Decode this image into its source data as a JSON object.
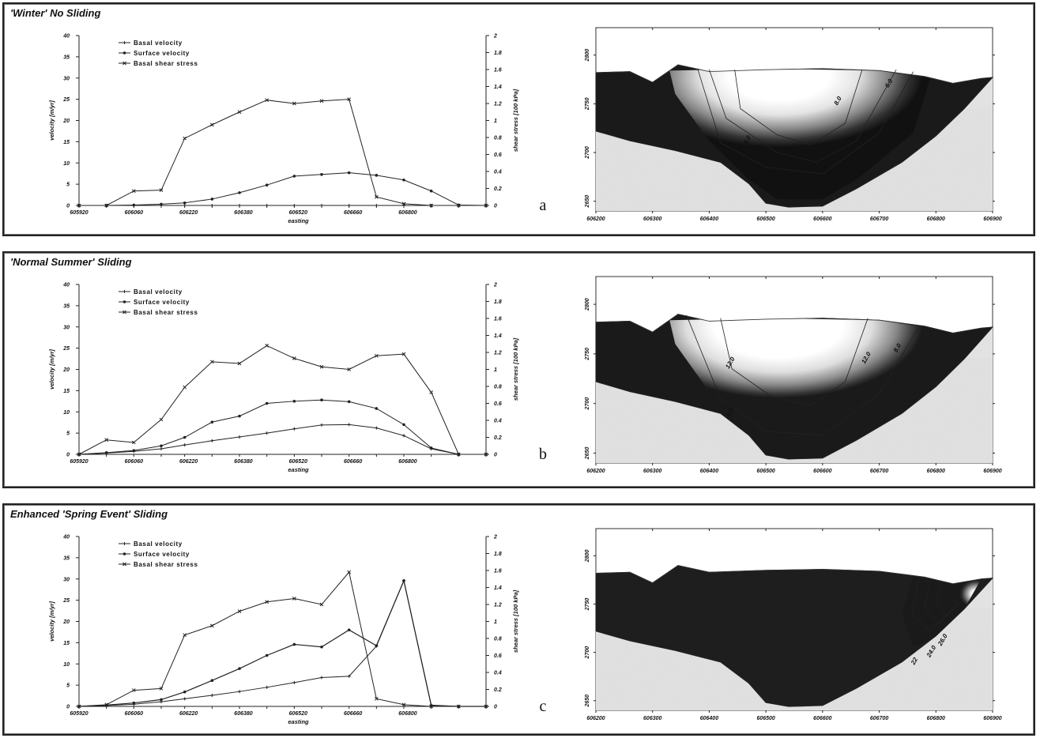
{
  "panels": [
    {
      "title": "'Winter' No Sliding",
      "letter": "a",
      "chart_data": {
        "type": "line",
        "xlabel": "easting",
        "ylabel": "velocity [m/yr]",
        "y2label": "shear stress [100 kPa]",
        "x_ticks": [
          "605920",
          "606060",
          "606220",
          "606380",
          "606520",
          "606660",
          "606800"
        ],
        "ylim": [
          0,
          40
        ],
        "y_ticks": [
          "0",
          "5",
          "10",
          "15",
          "20",
          "25",
          "30",
          "35",
          "40"
        ],
        "y2lim": [
          0,
          2
        ],
        "y2_ticks": [
          "0",
          "0.2",
          "0.4",
          "0.6",
          "0.8",
          "1",
          "1.2",
          "1.4",
          "1.6",
          "1.8",
          "2"
        ],
        "legend": [
          "Basal velocity",
          "Surface velocity",
          "Basal shear stress"
        ],
        "x": [
          605920,
          605990,
          606060,
          606130,
          606190,
          606260,
          606330,
          606400,
          606470,
          606540,
          606610,
          606680,
          606750,
          606820,
          606890,
          606960
        ],
        "series": [
          {
            "name": "Basal velocity",
            "values": [
              0,
              0,
              0,
              0,
              0,
              0,
              0,
              0,
              0,
              0,
              0,
              0,
              0,
              0,
              0,
              0
            ]
          },
          {
            "name": "Surface velocity",
            "values": [
              0,
              0,
              0.1,
              0.3,
              0.6,
              1.5,
              3,
              4.8,
              6.9,
              7.3,
              7.7,
              7.1,
              6,
              3.4,
              0.1,
              0
            ]
          },
          {
            "name": "Basal shear stress",
            "axis": "right",
            "values": [
              0,
              0,
              0.17,
              0.18,
              0.79,
              0.95,
              1.1,
              1.24,
              1.2,
              1.23,
              1.25,
              0.1,
              0.02,
              0,
              0,
              0
            ]
          }
        ]
      },
      "section": {
        "x_ticks": [
          "606200",
          "606300",
          "606400",
          "606500",
          "606600",
          "606700",
          "606800",
          "606900"
        ],
        "y_ticks": [
          "2650",
          "2700",
          "2750",
          "2800"
        ],
        "xlim": [
          606200,
          606900
        ],
        "ylim": [
          2640,
          2820
        ],
        "shading": "winter",
        "contour_labels": [
          "8.0",
          "6.0",
          "6.0",
          "4.0"
        ]
      }
    },
    {
      "title": "'Normal Summer' Sliding",
      "letter": "b",
      "chart_data": {
        "type": "line",
        "xlabel": "easting",
        "ylabel": "velocity [m/yr]",
        "y2label": "shear stress [100 kPa]",
        "x_ticks": [
          "605920",
          "606060",
          "606220",
          "606380",
          "606520",
          "606660",
          "606800"
        ],
        "ylim": [
          0,
          40
        ],
        "y_ticks": [
          "0",
          "5",
          "10",
          "15",
          "20",
          "25",
          "30",
          "35",
          "40"
        ],
        "y2lim": [
          0,
          2
        ],
        "y2_ticks": [
          "0",
          "0.2",
          "0.4",
          "0.6",
          "0.8",
          "1",
          "1.2",
          "1.4",
          "1.6",
          "1.8",
          "2"
        ],
        "legend": [
          "Basal velocity",
          "Surface velocity",
          "Basal shear stress"
        ],
        "x": [
          605920,
          605990,
          606060,
          606130,
          606190,
          606260,
          606330,
          606400,
          606470,
          606540,
          606610,
          606680,
          606750,
          606820,
          606890,
          606960
        ],
        "series": [
          {
            "name": "Basal velocity",
            "values": [
              0,
              0.3,
              0.7,
              1.3,
              2.2,
              3.2,
              4.1,
              5,
              6,
              6.9,
              7,
              6.2,
              4.4,
              1.3,
              0,
              0
            ]
          },
          {
            "name": "Surface velocity",
            "values": [
              0,
              0.4,
              0.9,
              2,
              4,
              7.6,
              9,
              12,
              12.5,
              12.8,
              12.4,
              10.8,
              7,
              1.5,
              0,
              0
            ]
          },
          {
            "name": "Basal shear stress",
            "axis": "right",
            "values": [
              0,
              0.17,
              0.14,
              0.41,
              0.79,
              1.09,
              1.07,
              1.28,
              1.13,
              1.03,
              1.0,
              1.16,
              1.18,
              0.73,
              0,
              0
            ]
          }
        ]
      },
      "section": {
        "x_ticks": [
          "606200",
          "606300",
          "606400",
          "606500",
          "606600",
          "606700",
          "606800",
          "606900"
        ],
        "y_ticks": [
          "2650",
          "2700",
          "2750",
          "2800"
        ],
        "xlim": [
          606200,
          606900
        ],
        "ylim": [
          2640,
          2820
        ],
        "shading": "summer",
        "contour_labels": [
          "12.0",
          "12.0",
          "8.0",
          "8.0"
        ]
      }
    },
    {
      "title": "Enhanced 'Spring Event' Sliding",
      "letter": "c",
      "chart_data": {
        "type": "line",
        "xlabel": "easting",
        "ylabel": "velocity [m/yr]",
        "y2label": "shear stress [100 kPa]",
        "x_ticks": [
          "605920",
          "606060",
          "606220",
          "606380",
          "606520",
          "606660",
          "606800"
        ],
        "ylim": [
          0,
          40
        ],
        "y_ticks": [
          "0",
          "5",
          "10",
          "15",
          "20",
          "25",
          "30",
          "35",
          "40"
        ],
        "y2lim": [
          0,
          2
        ],
        "y2_ticks": [
          "0",
          "0.2",
          "0.4",
          "0.6",
          "0.8",
          "1",
          "1.2",
          "1.4",
          "1.6",
          "1.8",
          "2"
        ],
        "legend": [
          "Basal velocity",
          "Surface velocity",
          "Basal shear stress"
        ],
        "x": [
          605920,
          605990,
          606060,
          606130,
          606190,
          606260,
          606330,
          606400,
          606470,
          606540,
          606610,
          606680,
          606750,
          606820,
          606890,
          606960
        ],
        "series": [
          {
            "name": "Basal velocity",
            "values": [
              0,
              0.2,
              0.5,
              1.1,
              1.8,
              2.6,
              3.5,
              4.5,
              5.6,
              6.8,
              7.1,
              14.2,
              29.6,
              0.3,
              0,
              0
            ]
          },
          {
            "name": "Surface velocity",
            "values": [
              0,
              0.3,
              0.8,
              1.6,
              3.4,
              6.1,
              8.9,
              12,
              14.6,
              14,
              18,
              14.3,
              29.6,
              0.2,
              0,
              0
            ]
          },
          {
            "name": "Basal shear stress",
            "axis": "right",
            "values": [
              0,
              0.02,
              0.19,
              0.21,
              0.84,
              0.95,
              1.12,
              1.23,
              1.27,
              1.2,
              1.58,
              0.09,
              0.02,
              0,
              0,
              0
            ]
          }
        ]
      },
      "section": {
        "x_ticks": [
          "606200",
          "606300",
          "606400",
          "606500",
          "606600",
          "606700",
          "606800",
          "606900"
        ],
        "y_ticks": [
          "2650",
          "2700",
          "2750",
          "2800"
        ],
        "xlim": [
          606200,
          606900
        ],
        "ylim": [
          2640,
          2820
        ],
        "shading": "spring",
        "contour_labels": [
          "26.0",
          "24.0",
          "22"
        ]
      }
    }
  ]
}
